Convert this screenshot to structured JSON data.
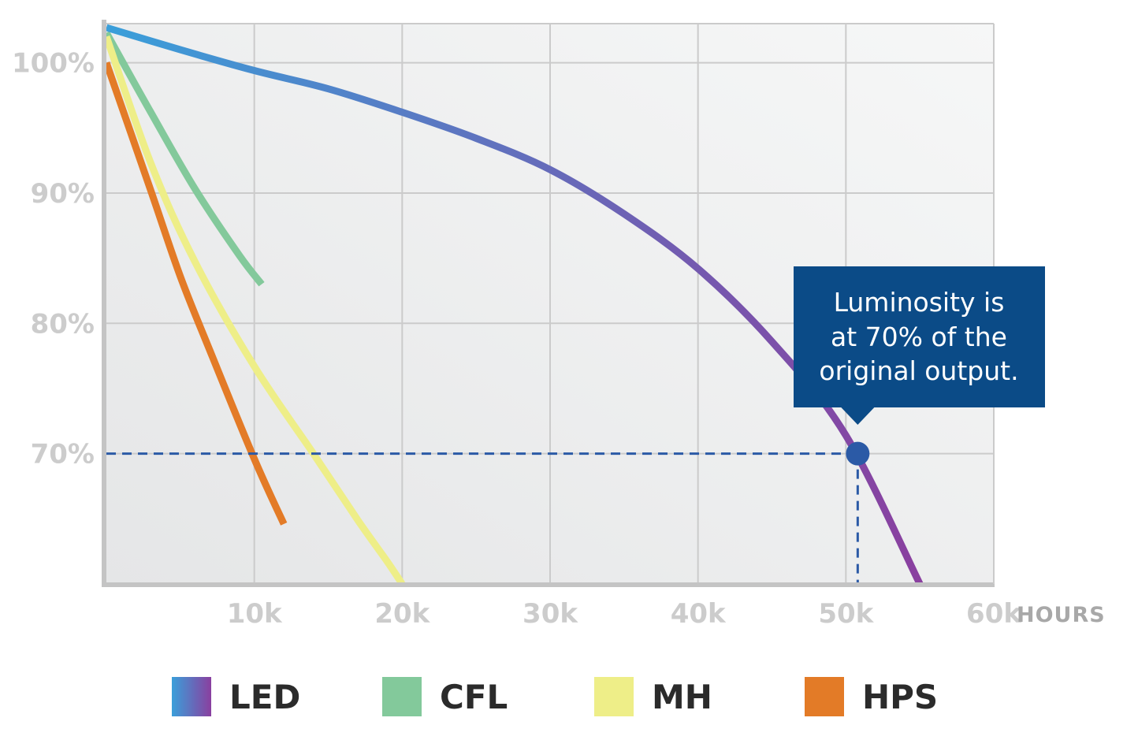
{
  "chart_data": {
    "type": "line",
    "title": "",
    "xlabel": "HOURS",
    "ylabel": "",
    "xlim": [
      0,
      60000
    ],
    "ylim": [
      60,
      103
    ],
    "x_ticks": [
      {
        "value": 10000,
        "label": "10k"
      },
      {
        "value": 20000,
        "label": "20k"
      },
      {
        "value": 30000,
        "label": "30k"
      },
      {
        "value": 40000,
        "label": "40k"
      },
      {
        "value": 50000,
        "label": "50k"
      },
      {
        "value": 60000,
        "label": "60k"
      }
    ],
    "y_ticks": [
      {
        "value": 100,
        "label": "100%"
      },
      {
        "value": 90,
        "label": "90%"
      },
      {
        "value": 80,
        "label": "80%"
      },
      {
        "value": 70,
        "label": "70%"
      }
    ],
    "grid": true,
    "series": [
      {
        "name": "LED",
        "color": "#3a9fda",
        "color_end": "#8a3f9f",
        "points": [
          [
            0,
            102.7
          ],
          [
            5000,
            101.0
          ],
          [
            10000,
            99.4
          ],
          [
            15000,
            98.0
          ],
          [
            20000,
            96.2
          ],
          [
            25000,
            94.2
          ],
          [
            30000,
            91.8
          ],
          [
            35000,
            88.4
          ],
          [
            40000,
            84.2
          ],
          [
            45000,
            78.6
          ],
          [
            50000,
            71.4
          ],
          [
            55000,
            60
          ]
        ]
      },
      {
        "name": "CFL",
        "color": "#83c99b",
        "points": [
          [
            0,
            102.3
          ],
          [
            3000,
            96.2
          ],
          [
            6000,
            90.3
          ],
          [
            9000,
            85.2
          ],
          [
            10500,
            83.0
          ]
        ]
      },
      {
        "name": "MH",
        "color": "#eeee88",
        "points": [
          [
            0,
            102.0
          ],
          [
            3000,
            92.3
          ],
          [
            6000,
            84.7
          ],
          [
            10000,
            76.7
          ],
          [
            14000,
            70.0
          ],
          [
            17000,
            64.9
          ],
          [
            19000,
            61.7
          ],
          [
            20000,
            60.0
          ]
        ]
      },
      {
        "name": "HPS",
        "color": "#e37b27",
        "points": [
          [
            0,
            100.0
          ],
          [
            3000,
            90.2
          ],
          [
            5000,
            83.6
          ],
          [
            7000,
            77.9
          ],
          [
            10000,
            69.6
          ],
          [
            12000,
            64.6
          ]
        ]
      }
    ],
    "reference_line": {
      "y": 70,
      "x": 50800
    },
    "marker": {
      "x": 50800,
      "y": 70,
      "color": "#2b5aa6"
    },
    "annotation": {
      "lines": [
        "Luminosity is",
        "at 70% of the",
        "original output."
      ],
      "background": "#0b4b87"
    },
    "legend": {
      "placement": "bottom",
      "entries": [
        "LED",
        "CFL",
        "MH",
        "HPS"
      ]
    }
  }
}
